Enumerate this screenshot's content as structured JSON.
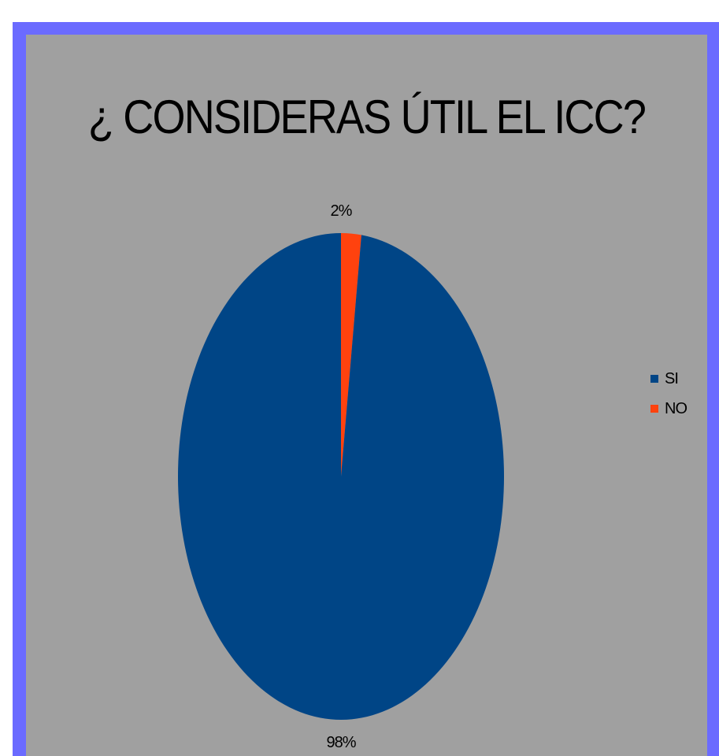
{
  "chart_data": {
    "type": "pie",
    "title": "¿ CONSIDERAS ÚTIL EL ICC?",
    "categories": [
      "SI",
      "NO"
    ],
    "values": [
      98,
      2
    ],
    "data_labels": [
      "98%",
      "2%"
    ],
    "colors": [
      "#004586",
      "#ff420e"
    ],
    "legend_position": "right"
  }
}
